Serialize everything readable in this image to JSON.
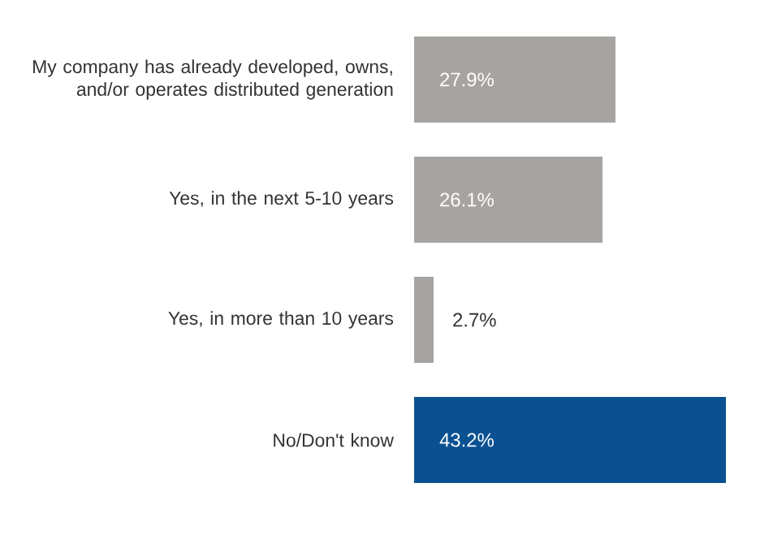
{
  "chart_data": {
    "type": "bar",
    "orientation": "horizontal",
    "categories": [
      "My company has already developed, owns, and/or operates distributed generation",
      "Yes, in the next 5-10 years",
      "Yes, in more than 10 years",
      "No/Don't know"
    ],
    "values": [
      27.9,
      26.1,
      2.7,
      43.2
    ],
    "colors": [
      "#a7a3a0",
      "#a7a3a0",
      "#a7a3a0",
      "#0b5192"
    ],
    "value_labels": [
      "27.9%",
      "26.1%",
      "2.7%",
      "43.2%"
    ],
    "data_labels": true
  }
}
